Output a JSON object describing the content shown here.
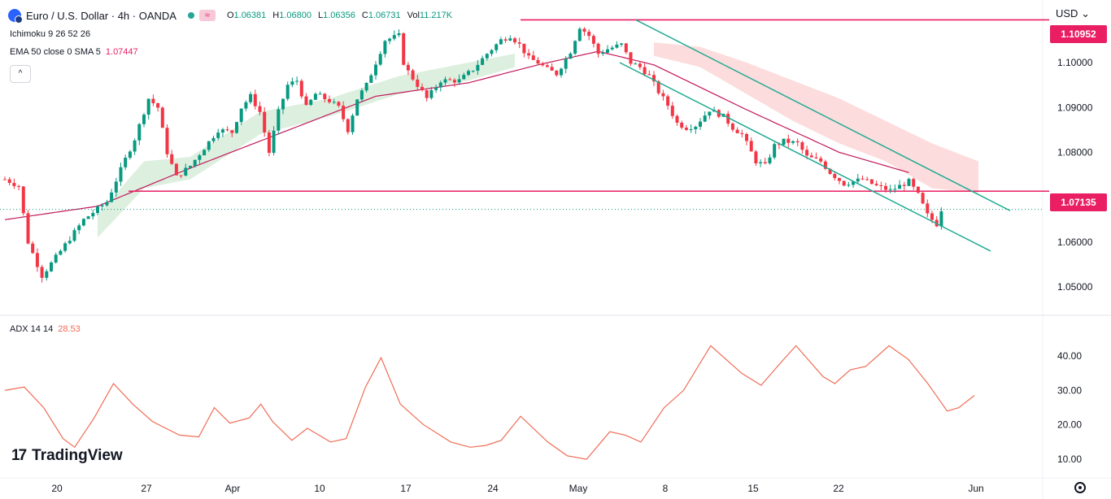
{
  "header": {
    "symbol": "Euro / U.S. Dollar · 4h · OANDA",
    "wave_icon": "≈",
    "open_label": "O",
    "open": "1.06381",
    "high_label": "H",
    "high": "1.06800",
    "low_label": "L",
    "low": "1.06356",
    "close_label": "C",
    "close": "1.06731",
    "vol_label": "Vol",
    "vol": "11.217K"
  },
  "indicators": {
    "ichimoku": "Ichimoku 9 26 52 26",
    "ema": "EMA 50 close 0 SMA 5",
    "ema_value": "1.07447",
    "collapse_icon": "^"
  },
  "currency": "USD",
  "currency_chevron": "⌄",
  "price_labels": {
    "resistance": "1.10952",
    "support": "1.07135"
  },
  "adx": {
    "label": "ADX 14 14",
    "value": "28.53"
  },
  "logo": {
    "mark": "17",
    "text": "TradingView"
  },
  "colors": {
    "up": "#089981",
    "down": "#f23645",
    "level": "#e91e63",
    "channel": "#22ab94",
    "ema": "#c2185b",
    "adx": "#ef6c55",
    "cloud_bull": "#d7ecd9",
    "cloud_bear": "#fbd6d6"
  },
  "chart_data": [
    {
      "type": "candlestick",
      "title": "Euro / U.S. Dollar · 4h · OANDA",
      "x_ticks": [
        "20",
        "27",
        "Apr",
        "10",
        "17",
        "24",
        "May",
        "8",
        "15",
        "22",
        "Jun"
      ],
      "y_ticks": [
        "1.10000",
        "1.09000",
        "1.08000",
        "1.06000",
        "1.05000"
      ],
      "ylim": [
        1.0455,
        1.1125
      ],
      "horizontal_levels": [
        1.10952,
        1.07135
      ],
      "descending_channel": {
        "upper": [
          1.1095,
          1.067
        ],
        "lower": [
          1.1,
          1.058
        ]
      },
      "price_path": [
        [
          0,
          1.074
        ],
        [
          3,
          1.0725
        ],
        [
          5,
          1.06
        ],
        [
          8,
          1.0525
        ],
        [
          12,
          1.058
        ],
        [
          17,
          1.065
        ],
        [
          22,
          1.069
        ],
        [
          26,
          1.0785
        ],
        [
          28,
          1.083
        ],
        [
          31,
          1.092
        ],
        [
          33,
          1.09
        ],
        [
          35,
          1.08
        ],
        [
          37,
          1.0745
        ],
        [
          40,
          1.077
        ],
        [
          43,
          1.081
        ],
        [
          46,
          1.085
        ],
        [
          49,
          1.0845
        ],
        [
          51,
          1.09
        ],
        [
          53,
          1.0925
        ],
        [
          55,
          1.089
        ],
        [
          57,
          1.08
        ],
        [
          59,
          1.089
        ],
        [
          61,
          1.095
        ],
        [
          63,
          1.096
        ],
        [
          65,
          1.09
        ],
        [
          67,
          1.093
        ],
        [
          70,
          1.0915
        ],
        [
          72,
          1.09
        ],
        [
          74,
          1.085
        ],
        [
          76,
          1.092
        ],
        [
          78,
          1.095
        ],
        [
          80,
          1.1
        ],
        [
          82,
          1.105
        ],
        [
          85,
          1.106
        ],
        [
          86,
          1.1
        ],
        [
          87,
          1.098
        ],
        [
          89,
          1.095
        ],
        [
          91,
          1.092
        ],
        [
          94,
          1.096
        ],
        [
          98,
          1.096
        ],
        [
          101,
          1.0985
        ],
        [
          104,
          1.102
        ],
        [
          107,
          1.105
        ],
        [
          109,
          1.106
        ],
        [
          111,
          1.104
        ],
        [
          113,
          1.101
        ],
        [
          115,
          1.1
        ],
        [
          117,
          1.0985
        ],
        [
          119,
          1.0975
        ],
        [
          122,
          1.1025
        ],
        [
          124,
          1.108
        ],
        [
          126,
          1.106
        ],
        [
          128,
          1.102
        ],
        [
          130,
          1.103
        ],
        [
          133,
          1.104
        ],
        [
          135,
          1.1
        ],
        [
          137,
          1.099
        ],
        [
          139,
          1.097
        ],
        [
          141,
          1.0935
        ],
        [
          143,
          1.0905
        ],
        [
          145,
          1.0865
        ],
        [
          147,
          1.0855
        ],
        [
          149,
          1.086
        ],
        [
          152,
          1.0895
        ],
        [
          155,
          1.088
        ],
        [
          157,
          1.0855
        ],
        [
          159,
          1.084
        ],
        [
          162,
          1.078
        ],
        [
          164,
          1.077
        ],
        [
          166,
          1.0815
        ],
        [
          168,
          1.0825
        ],
        [
          171,
          1.082
        ],
        [
          173,
          1.079
        ],
        [
          176,
          1.078
        ],
        [
          178,
          1.0755
        ],
        [
          181,
          1.073
        ],
        [
          183,
          1.0735
        ],
        [
          185,
          1.074
        ],
        [
          188,
          1.0725
        ],
        [
          191,
          1.0715
        ],
        [
          193,
          1.0725
        ],
        [
          195,
          1.0735
        ],
        [
          197,
          1.0705
        ],
        [
          199,
          1.066
        ],
        [
          201,
          1.064
        ],
        [
          202,
          1.0673
        ]
      ],
      "ema50_path": [
        [
          0,
          1.065
        ],
        [
          20,
          1.068
        ],
        [
          40,
          1.0765
        ],
        [
          60,
          1.0845
        ],
        [
          80,
          1.0925
        ],
        [
          100,
          1.0955
        ],
        [
          115,
          1.0995
        ],
        [
          128,
          1.1025
        ],
        [
          140,
          1.0995
        ],
        [
          160,
          1.0895
        ],
        [
          180,
          1.08
        ],
        [
          195,
          1.0755
        ]
      ],
      "cloud_bull_band": [
        [
          20,
          1.061,
          1.066
        ],
        [
          30,
          1.072,
          1.078
        ],
        [
          40,
          1.074,
          1.079
        ],
        [
          55,
          1.084,
          1.089
        ],
        [
          70,
          1.088,
          1.092
        ],
        [
          85,
          1.093,
          1.097
        ],
        [
          100,
          1.096,
          1.1
        ],
        [
          110,
          1.099,
          1.102
        ]
      ],
      "cloud_bear_band": [
        [
          140,
          1.1015,
          1.1045
        ],
        [
          150,
          1.099,
          1.1035
        ],
        [
          160,
          1.093,
          1.1
        ],
        [
          170,
          1.087,
          1.096
        ],
        [
          180,
          1.082,
          1.092
        ],
        [
          190,
          1.078,
          1.087
        ],
        [
          200,
          1.072,
          1.082
        ],
        [
          210,
          1.071,
          1.078
        ]
      ]
    },
    {
      "type": "line",
      "title": "ADX 14 14",
      "y_ticks": [
        "40.00",
        "30.00",
        "20.00",
        "10.00"
      ],
      "ylim": [
        6,
        49
      ],
      "series": [
        {
          "name": "ADX 14 14",
          "points": [
            [
              0,
              30
            ],
            [
              5,
              31
            ],
            [
              10,
              25
            ],
            [
              15,
              16
            ],
            [
              18,
              13.5
            ],
            [
              23,
              22
            ],
            [
              28,
              32
            ],
            [
              33,
              26
            ],
            [
              38,
              21
            ],
            [
              45,
              17
            ],
            [
              50,
              16.5
            ],
            [
              54,
              25
            ],
            [
              58,
              20.5
            ],
            [
              63,
              22
            ],
            [
              66,
              26
            ],
            [
              69,
              21
            ],
            [
              74,
              15.5
            ],
            [
              78,
              19
            ],
            [
              84,
              15
            ],
            [
              88,
              16
            ],
            [
              93,
              31
            ],
            [
              97,
              39.5
            ],
            [
              102,
              26
            ],
            [
              108,
              20
            ],
            [
              115,
              15
            ],
            [
              120,
              13.5
            ],
            [
              124,
              14
            ],
            [
              128,
              15.5
            ],
            [
              133,
              22.5
            ],
            [
              140,
              15
            ],
            [
              145,
              11
            ],
            [
              150,
              10
            ],
            [
              156,
              18
            ],
            [
              160,
              17
            ],
            [
              164,
              15
            ],
            [
              170,
              25
            ],
            [
              175,
              30
            ],
            [
              182,
              43
            ],
            [
              190,
              35
            ],
            [
              195,
              31.5
            ],
            [
              200,
              38
            ],
            [
              204,
              43
            ],
            [
              211,
              34
            ],
            [
              214,
              32
            ],
            [
              218,
              36
            ],
            [
              222,
              37
            ],
            [
              228,
              43
            ],
            [
              233,
              39
            ],
            [
              238,
              32
            ],
            [
              243,
              24
            ],
            [
              246,
              25
            ],
            [
              250,
              28.53
            ]
          ]
        }
      ]
    }
  ]
}
